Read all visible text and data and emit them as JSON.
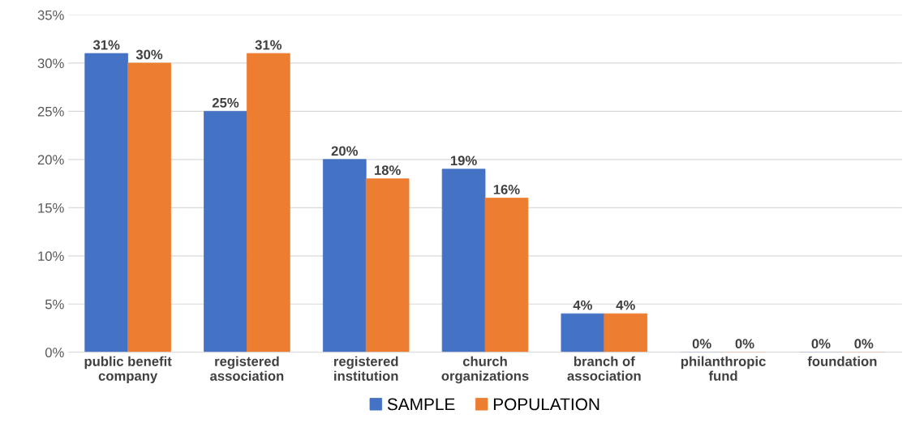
{
  "chart_data": {
    "type": "bar",
    "categories": [
      "public benefit\ncompany",
      "registered\nassociation",
      "registered\ninstitution",
      "church\norganizations",
      "branch of\nassociation",
      "philanthropic\nfund",
      "foundation"
    ],
    "series": [
      {
        "name": "SAMPLE",
        "color": "#4472c4",
        "values": [
          31,
          25,
          20,
          19,
          4,
          0,
          0
        ],
        "value_labels": [
          "31%",
          "25%",
          "20%",
          "19%",
          "4%",
          "0%",
          "0%"
        ]
      },
      {
        "name": "POPULATION",
        "color": "#ed7d31",
        "values": [
          30,
          31,
          18,
          16,
          4,
          0,
          0
        ],
        "value_labels": [
          "30%",
          "31%",
          "18%",
          "16%",
          "4%",
          "0%",
          "0%"
        ]
      }
    ],
    "ylim": [
      0,
      35
    ],
    "yticks": [
      {
        "value": 0,
        "label": "0%"
      },
      {
        "value": 5,
        "label": "5%"
      },
      {
        "value": 10,
        "label": "10%"
      },
      {
        "value": 15,
        "label": "15%"
      },
      {
        "value": 20,
        "label": "20%"
      },
      {
        "value": 25,
        "label": "25%"
      },
      {
        "value": 30,
        "label": "30%"
      },
      {
        "value": 35,
        "label": "35%"
      }
    ],
    "grid": "y",
    "legend": "bottom"
  }
}
